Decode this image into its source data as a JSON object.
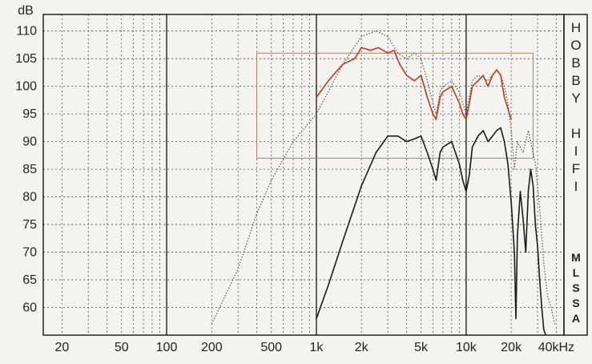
{
  "chart_data": {
    "type": "line",
    "title": "",
    "xlabel": "",
    "ylabel": "dB",
    "x_scale": "log",
    "xlim": [
      15,
      45000
    ],
    "ylim": [
      55,
      113
    ],
    "grid": true,
    "x_tick_labels": [
      {
        "value": 20,
        "label": "20"
      },
      {
        "value": 50,
        "label": "50"
      },
      {
        "value": 100,
        "label": "100"
      },
      {
        "value": 200,
        "label": "200"
      },
      {
        "value": 500,
        "label": "500"
      },
      {
        "value": 1000,
        "label": "1k"
      },
      {
        "value": 2000,
        "label": "2k"
      },
      {
        "value": 5000,
        "label": "5k"
      },
      {
        "value": 10000,
        "label": "10k"
      },
      {
        "value": 20000,
        "label": "20k"
      },
      {
        "value": 40000,
        "label": "40kHz"
      }
    ],
    "y_ticks": [
      60,
      65,
      70,
      75,
      80,
      85,
      90,
      95,
      100,
      105,
      110
    ],
    "side_labels": {
      "top": [
        "H",
        "O",
        "B",
        "B",
        "Y",
        "",
        "H",
        "I",
        "F",
        "I"
      ],
      "bottom": [
        "M",
        "L",
        "S",
        "S",
        "A"
      ]
    },
    "inset_box": {
      "x_range": [
        400,
        28000
      ],
      "y_range": [
        87,
        106
      ]
    },
    "series": [
      {
        "name": "",
        "color": "#1a1a1a",
        "style": "solid",
        "points": [
          [
            1000,
            58
          ],
          [
            1200,
            64
          ],
          [
            1500,
            72
          ],
          [
            2000,
            82
          ],
          [
            2500,
            88
          ],
          [
            3000,
            91
          ],
          [
            3500,
            91
          ],
          [
            4000,
            90
          ],
          [
            4500,
            90.5
          ],
          [
            5000,
            91
          ],
          [
            5500,
            88
          ],
          [
            6000,
            85
          ],
          [
            6300,
            83
          ],
          [
            6700,
            88
          ],
          [
            7000,
            89
          ],
          [
            8000,
            90
          ],
          [
            9000,
            86
          ],
          [
            9500,
            83
          ],
          [
            10000,
            81
          ],
          [
            10500,
            84
          ],
          [
            11000,
            89
          ],
          [
            12000,
            91
          ],
          [
            13000,
            92
          ],
          [
            14000,
            90
          ],
          [
            15000,
            91
          ],
          [
            16000,
            92
          ],
          [
            17000,
            92.5
          ],
          [
            18000,
            90
          ],
          [
            19000,
            86
          ],
          [
            20000,
            79
          ],
          [
            21000,
            70
          ],
          [
            21500,
            58
          ],
          [
            22000,
            73
          ],
          [
            23000,
            81
          ],
          [
            24000,
            76
          ],
          [
            25000,
            70
          ],
          [
            26000,
            81
          ],
          [
            27000,
            85
          ],
          [
            28000,
            82
          ],
          [
            29000,
            75
          ],
          [
            30000,
            71
          ],
          [
            31000,
            65
          ],
          [
            32000,
            60
          ],
          [
            33000,
            56
          ],
          [
            34000,
            55
          ]
        ]
      },
      {
        "name": "",
        "color": "#555555",
        "style": "dotted",
        "points": [
          [
            200,
            57
          ],
          [
            300,
            67
          ],
          [
            400,
            77
          ],
          [
            500,
            83
          ],
          [
            700,
            90
          ],
          [
            1000,
            95
          ],
          [
            1500,
            104
          ],
          [
            2000,
            109
          ],
          [
            2500,
            110
          ],
          [
            3000,
            109
          ],
          [
            3500,
            106
          ],
          [
            4000,
            105
          ],
          [
            4500,
            106
          ],
          [
            5000,
            105
          ],
          [
            5500,
            101
          ],
          [
            6000,
            97
          ],
          [
            6300,
            95
          ],
          [
            6700,
            99
          ],
          [
            7000,
            100
          ],
          [
            8000,
            101
          ],
          [
            9000,
            99
          ],
          [
            9500,
            97
          ],
          [
            10000,
            95
          ],
          [
            10500,
            98
          ],
          [
            11000,
            101
          ],
          [
            12000,
            102
          ],
          [
            14000,
            101
          ],
          [
            16000,
            103
          ],
          [
            17000,
            102
          ],
          [
            18000,
            100
          ],
          [
            19000,
            97
          ],
          [
            20000,
            92
          ],
          [
            21000,
            85
          ],
          [
            22000,
            90
          ],
          [
            24000,
            88
          ],
          [
            26000,
            92
          ],
          [
            27000,
            90
          ],
          [
            29000,
            86
          ],
          [
            31000,
            78
          ],
          [
            33000,
            68
          ],
          [
            35000,
            62
          ],
          [
            37000,
            60
          ],
          [
            39000,
            57
          ]
        ]
      },
      {
        "name": "",
        "color": "#c43a1c",
        "style": "solid",
        "points": [
          [
            1000,
            98
          ],
          [
            1200,
            101
          ],
          [
            1500,
            104
          ],
          [
            1800,
            105
          ],
          [
            2000,
            107
          ],
          [
            2300,
            106.5
          ],
          [
            2600,
            107
          ],
          [
            3000,
            106
          ],
          [
            3300,
            106.5
          ],
          [
            3600,
            104
          ],
          [
            4000,
            102
          ],
          [
            4500,
            101
          ],
          [
            5000,
            102
          ],
          [
            5500,
            98
          ],
          [
            6000,
            95
          ],
          [
            6300,
            94
          ],
          [
            6700,
            98
          ],
          [
            7000,
            99
          ],
          [
            8000,
            100
          ],
          [
            9000,
            97
          ],
          [
            9500,
            95
          ],
          [
            10000,
            94
          ],
          [
            10500,
            97
          ],
          [
            11000,
            100
          ],
          [
            12000,
            101
          ],
          [
            13000,
            102
          ],
          [
            14000,
            100
          ],
          [
            15000,
            102
          ],
          [
            16000,
            103
          ],
          [
            17000,
            102
          ],
          [
            18000,
            98
          ],
          [
            19000,
            96
          ],
          [
            20000,
            94
          ]
        ]
      }
    ]
  }
}
